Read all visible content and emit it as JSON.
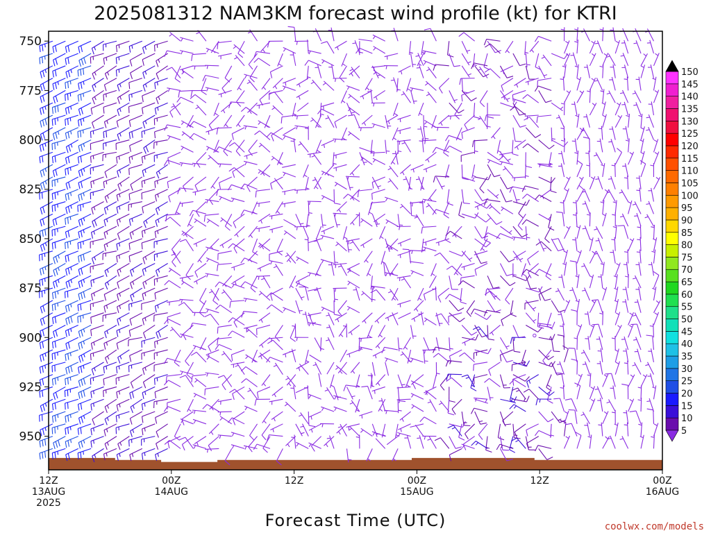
{
  "chart_data": {
    "type": "wind_barbs",
    "title": "2025081312 NAM3KM forecast wind profile (kt) for KTRI",
    "xlabel": "Forecast Time (UTC)",
    "credit": "coolwx.com/models",
    "x_ticks": [
      {
        "hour": 0,
        "lines": [
          "12Z",
          "13AUG",
          "2025"
        ]
      },
      {
        "hour": 12,
        "lines": [
          "00Z",
          "14AUG"
        ]
      },
      {
        "hour": 24,
        "lines": [
          "12Z"
        ]
      },
      {
        "hour": 36,
        "lines": [
          "00Z",
          "15AUG"
        ]
      },
      {
        "hour": 48,
        "lines": [
          "12Z"
        ]
      },
      {
        "hour": 60,
        "lines": [
          "00Z",
          "16AUG"
        ]
      }
    ],
    "xlim_hours": [
      0,
      60
    ],
    "y_ticks": [
      750,
      775,
      800,
      825,
      850,
      875,
      900,
      925,
      950
    ],
    "ylim_hPa": [
      745,
      967
    ],
    "wind_interval_hPa": 12.5,
    "colorbar": {
      "ticks": [
        5,
        10,
        15,
        20,
        25,
        30,
        35,
        40,
        45,
        50,
        55,
        60,
        65,
        70,
        75,
        80,
        85,
        90,
        95,
        100,
        105,
        110,
        115,
        120,
        125,
        130,
        135,
        140,
        145,
        150
      ],
      "colors": [
        "#8a2be2",
        "#6a0dad",
        "#3a0fd9",
        "#1a1aff",
        "#1f4fe6",
        "#1f75e6",
        "#1e9ee6",
        "#1fc1e6",
        "#10e0e0",
        "#10e0b8",
        "#1fe08a",
        "#20e050",
        "#20d820",
        "#58e020",
        "#90e820",
        "#c8f000",
        "#ffff00",
        "#ffd800",
        "#ffb000",
        "#ff9a00",
        "#ff8000",
        "#ff6a00",
        "#ff5000",
        "#ff2a00",
        "#ff0000",
        "#f01040",
        "#f01070",
        "#f020a0",
        "#f020d0",
        "#ff33ff"
      ]
    },
    "terrain": {
      "color": "#a0522d",
      "surface_hPa": [
        961,
        961,
        961,
        961,
        961,
        961,
        961,
        961,
        961,
        961,
        961,
        961,
        961,
        962,
        962,
        962,
        962,
        962,
        962,
        962,
        962,
        962,
        963,
        963,
        963,
        963,
        963,
        963,
        963,
        963,
        963,
        963,
        963,
        962,
        962,
        962,
        962,
        962,
        962,
        962,
        962,
        962,
        962,
        962,
        962,
        962,
        962,
        962,
        962,
        962,
        962,
        962,
        962,
        962,
        962,
        962,
        962,
        962,
        962,
        962,
        962,
        962,
        962,
        962,
        962,
        962,
        962,
        962,
        962,
        962,
        962,
        961,
        961,
        961,
        961,
        961,
        961,
        961,
        961,
        961,
        961,
        961,
        961,
        961,
        961,
        961,
        961,
        961,
        961,
        961,
        961,
        961,
        961,
        961,
        961,
        962,
        962,
        962,
        962,
        962,
        962,
        962,
        962,
        962,
        962,
        962,
        962,
        962,
        962,
        962,
        962,
        962,
        962,
        962,
        962,
        962,
        962,
        962,
        962,
        962
      ]
    },
    "wind_regimes": [
      {
        "hours": [
          0,
          5
        ],
        "speed_kt": [
          20,
          28
        ],
        "from_deg": [
          240,
          255
        ]
      },
      {
        "hours": [
          5,
          12
        ],
        "speed_kt": [
          10,
          18
        ],
        "from_deg": [
          235,
          260
        ]
      },
      {
        "hours": [
          12,
          24
        ],
        "speed_kt": [
          5,
          10
        ],
        "from_deg": [
          200,
          330
        ]
      },
      {
        "hours": [
          24,
          38
        ],
        "speed_kt": [
          2,
          8
        ],
        "from_deg": [
          150,
          360
        ]
      },
      {
        "hours": [
          38,
          50
        ],
        "speed_kt": [
          5,
          12
        ],
        "from_deg": [
          100,
          330
        ]
      },
      {
        "hours": [
          50,
          60
        ],
        "speed_kt": [
          3,
          8
        ],
        "from_deg": [
          330,
          30
        ]
      }
    ],
    "calm_marker": {
      "hour": 47.5,
      "pressure_hPa": 899
    }
  }
}
